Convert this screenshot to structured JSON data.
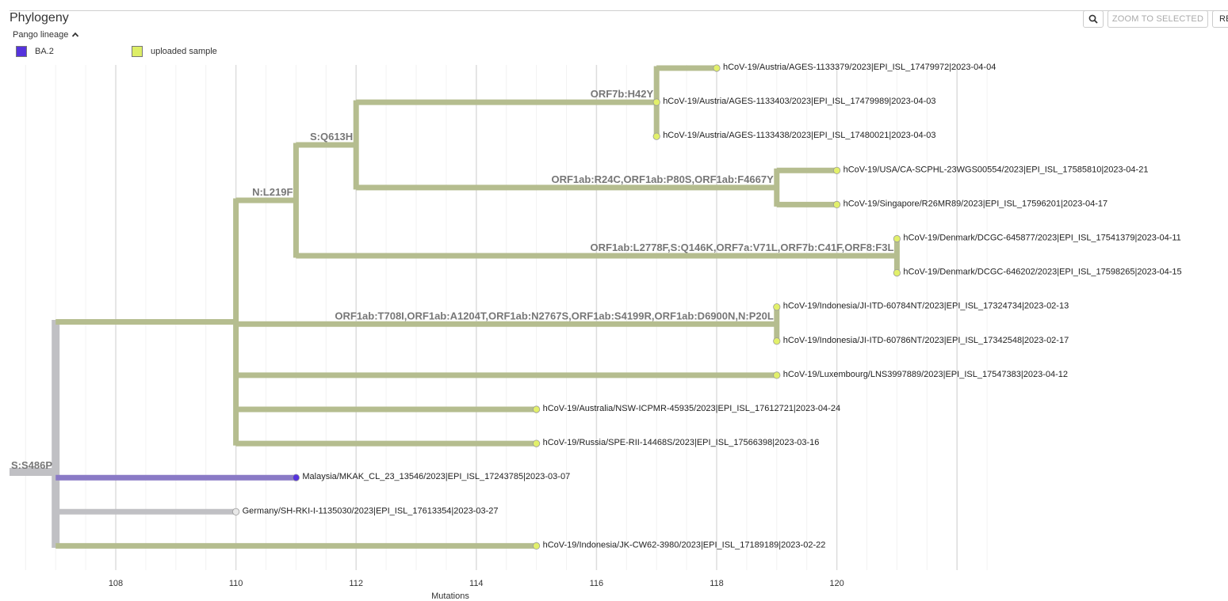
{
  "title": "Phylogeny",
  "legend": {
    "title": "Pango lineage",
    "items": [
      {
        "label": "BA.2",
        "color": "#5533dd"
      },
      {
        "label": "uploaded sample",
        "color": "#ddee66"
      }
    ]
  },
  "toolbar": {
    "search_icon": "magnifier-icon",
    "zoom_label": "ZOOM TO SELECTED",
    "reset_label": "RE"
  },
  "colors": {
    "branch_sample": "#b5bd8f",
    "branch_base": "#c0c0c4",
    "branch_ba2": "#8a7ac6",
    "node_sample": "#e2f06a",
    "node_ba2": "#5533dd",
    "node_base": "#e8e8e8",
    "mutation_text": "#777777"
  },
  "chart_data": {
    "type": "tree",
    "xlabel": "Mutations",
    "xlim": [
      106.5,
      122.5
    ],
    "x_ticks": [
      108,
      110,
      112,
      114,
      116,
      118,
      120
    ],
    "nodes": [
      {
        "id": "root",
        "x": 107,
        "parent": null,
        "group": "base"
      },
      {
        "id": "clade",
        "x": 110,
        "parent": "root",
        "group": "sample"
      },
      {
        "id": "n_l219f",
        "x": 111,
        "parent": "clade",
        "group": "sample",
        "mutation": "N:L219F"
      },
      {
        "id": "s_q613h",
        "x": 112,
        "parent": "n_l219f",
        "group": "sample",
        "mutation": "S:Q613H"
      },
      {
        "id": "orf7b",
        "x": 117,
        "parent": "s_q613h",
        "group": "sample",
        "mutation": "ORF7b:H42Y"
      },
      {
        "id": "usa_sg",
        "x": 119,
        "parent": "s_q613h",
        "group": "sample",
        "mutation": "ORF1ab:R24C,ORF1ab:P80S,ORF1ab:F4667Y"
      },
      {
        "id": "denmark",
        "x": 121,
        "parent": "n_l219f",
        "group": "sample",
        "mutation": "ORF1ab:L2778F,S:Q146K,ORF7a:V71L,ORF7b:C41F,ORF8:F3L"
      },
      {
        "id": "indonesia_ji",
        "x": 119,
        "parent": "clade",
        "group": "sample",
        "mutation": "ORF1ab:T708I,ORF1ab:A1204T,ORF1ab:N2767S,ORF1ab:S4199R,ORF1ab:D6900N,N:P20L"
      }
    ],
    "root_mutation": "S:S486P",
    "tips": [
      {
        "label": "hCoV-19/Austria/AGES-1133379/2023|EPI_ISL_17479972|2023-04-04",
        "x": 118,
        "parent": "orf7b",
        "group": "sample"
      },
      {
        "label": "hCoV-19/Austria/AGES-1133403/2023|EPI_ISL_17479989|2023-04-03",
        "x": 117,
        "parent": "orf7b",
        "group": "sample"
      },
      {
        "label": "hCoV-19/Austria/AGES-1133438/2023|EPI_ISL_17480021|2023-04-03",
        "x": 117,
        "parent": "orf7b",
        "group": "sample"
      },
      {
        "label": "hCoV-19/USA/CA-SCPHL-23WGS00554/2023|EPI_ISL_17585810|2023-04-21",
        "x": 120,
        "parent": "usa_sg",
        "group": "sample"
      },
      {
        "label": "hCoV-19/Singapore/R26MR89/2023|EPI_ISL_17596201|2023-04-17",
        "x": 120,
        "parent": "usa_sg",
        "group": "sample"
      },
      {
        "label": "hCoV-19/Denmark/DCGC-645877/2023|EPI_ISL_17541379|2023-04-11",
        "x": 121,
        "parent": "denmark",
        "group": "sample"
      },
      {
        "label": "hCoV-19/Denmark/DCGC-646202/2023|EPI_ISL_17598265|2023-04-15",
        "x": 121,
        "parent": "denmark",
        "group": "sample"
      },
      {
        "label": "hCoV-19/Indonesia/JI-ITD-60784NT/2023|EPI_ISL_17324734|2023-02-13",
        "x": 119,
        "parent": "indonesia_ji",
        "group": "sample"
      },
      {
        "label": "hCoV-19/Indonesia/JI-ITD-60786NT/2023|EPI_ISL_17342548|2023-02-17",
        "x": 119,
        "parent": "indonesia_ji",
        "group": "sample"
      },
      {
        "label": "hCoV-19/Luxembourg/LNS3997889/2023|EPI_ISL_17547383|2023-04-12",
        "x": 119,
        "parent": "clade",
        "group": "sample"
      },
      {
        "label": "hCoV-19/Australia/NSW-ICPMR-45935/2023|EPI_ISL_17612721|2023-04-24",
        "x": 115,
        "parent": "clade",
        "group": "sample"
      },
      {
        "label": "hCoV-19/Russia/SPE-RII-14468S/2023|EPI_ISL_17566398|2023-03-16",
        "x": 115,
        "parent": "clade",
        "group": "sample"
      },
      {
        "label": "Malaysia/MKAK_CL_23_13546/2023|EPI_ISL_17243785|2023-03-07",
        "x": 111,
        "parent": "root",
        "group": "ba2"
      },
      {
        "label": "Germany/SH-RKI-I-1135030/2023|EPI_ISL_17613354|2023-03-27",
        "x": 110,
        "parent": "root",
        "group": "base"
      },
      {
        "label": "hCoV-19/Indonesia/JK-CW62-3980/2023|EPI_ISL_17189189|2023-02-22",
        "x": 115,
        "parent": "root",
        "group": "sample"
      }
    ]
  }
}
